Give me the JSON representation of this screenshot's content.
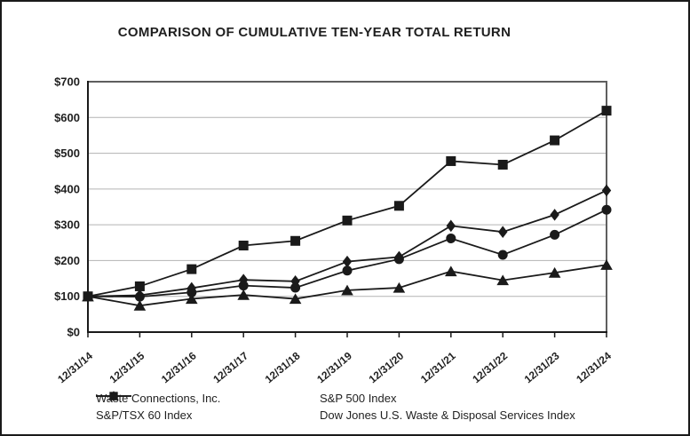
{
  "page": {
    "title": "COMPARISON OF CUMULATIVE TEN-YEAR TOTAL RETURN"
  },
  "chart_data": {
    "type": "line",
    "title": "COMPARISON OF CUMULATIVE TEN-YEAR TOTAL RETURN",
    "categories": [
      "12/31/14",
      "12/31/15",
      "12/31/16",
      "12/31/17",
      "12/31/18",
      "12/31/19",
      "12/31/20",
      "12/31/21",
      "12/31/22",
      "12/31/23",
      "12/31/24"
    ],
    "y_tick_labels": [
      "$0",
      "$100",
      "$200",
      "$300",
      "$400",
      "$500",
      "$600",
      "$700"
    ],
    "y_tick_values": [
      0,
      100,
      200,
      300,
      400,
      500,
      600,
      700
    ],
    "ylim": [
      0,
      700
    ],
    "grid": "horizontal",
    "legend_position": "bottom",
    "series": [
      {
        "name": "Waste Connections, Inc.",
        "marker": "square",
        "values": [
          100,
          128,
          176,
          242,
          255,
          312,
          353,
          478,
          468,
          536,
          619
        ]
      },
      {
        "name": "S&P 500 Index",
        "marker": "circle",
        "values": [
          100,
          99,
          111,
          130,
          124,
          172,
          204,
          262,
          216,
          272,
          342
        ]
      },
      {
        "name": "S&P/TSX 60 Index",
        "marker": "triangle",
        "values": [
          100,
          74,
          93,
          104,
          93,
          117,
          124,
          170,
          145,
          166,
          188
        ]
      },
      {
        "name": "Dow Jones U.S. Waste & Disposal Services Index",
        "marker": "diamond",
        "values": [
          100,
          103,
          123,
          146,
          142,
          197,
          210,
          297,
          280,
          328,
          396
        ]
      }
    ],
    "colors": {
      "line": "#1a1a1a",
      "marker": "#1a1a1a",
      "grid": "#b3b3b3",
      "plot_border": "#5f5f5f",
      "axis": "#1a1a1a",
      "background": "#ffffff"
    }
  }
}
